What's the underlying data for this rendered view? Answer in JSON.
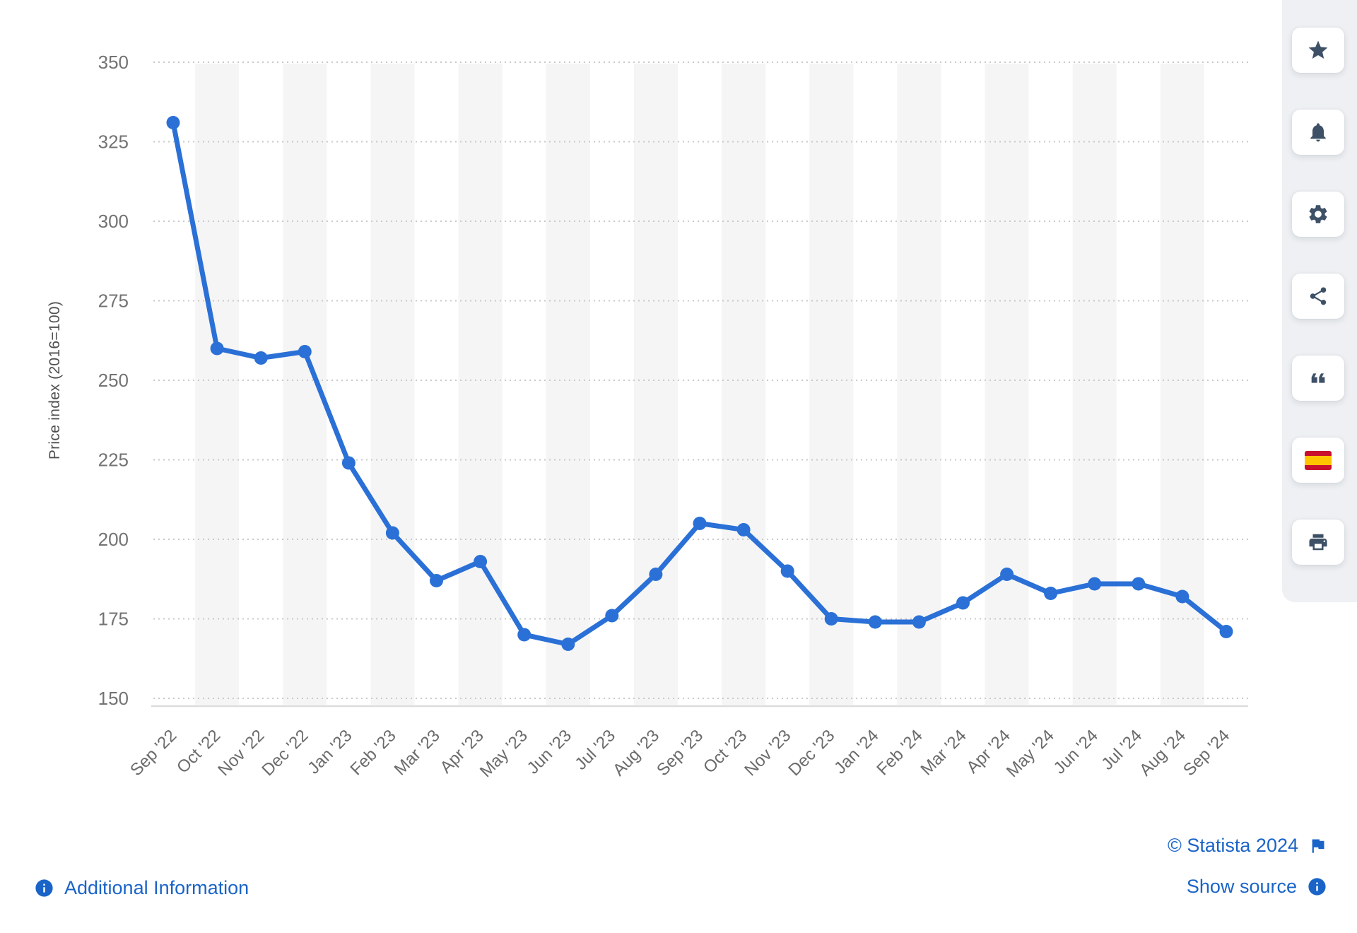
{
  "chart_data": {
    "type": "line",
    "title": "",
    "xlabel": "",
    "ylabel": "Price index (2016=100)",
    "ylim": [
      150,
      350
    ],
    "yticks": [
      350,
      325,
      300,
      275,
      250,
      225,
      200,
      175,
      150
    ],
    "grid": true,
    "legend": false,
    "categories": [
      "Sep '22",
      "Oct '22",
      "Nov '22",
      "Dec '22",
      "Jan '23",
      "Feb '23",
      "Mar '23",
      "Apr '23",
      "May '23",
      "Jun '23",
      "Jul '23",
      "Aug '23",
      "Sep '23",
      "Oct '23",
      "Nov '23",
      "Dec '23",
      "Jan '24",
      "Feb '24",
      "Mar '24",
      "Apr '24",
      "May '24",
      "Jun '24",
      "Jul '24",
      "Aug '24",
      "Sep '24"
    ],
    "series": [
      {
        "name": "Price index (2016=100)",
        "values": [
          331,
          260,
          257,
          259,
          224,
          202,
          187,
          193,
          170,
          167,
          176,
          189,
          205,
          203,
          190,
          175,
          174,
          174,
          180,
          189,
          183,
          186,
          186,
          182,
          171
        ]
      }
    ]
  },
  "sidebar": {
    "buttons": [
      {
        "name": "favorite",
        "icon": "star-icon"
      },
      {
        "name": "notifications",
        "icon": "bell-icon"
      },
      {
        "name": "settings",
        "icon": "gear-icon"
      },
      {
        "name": "share",
        "icon": "share-icon"
      },
      {
        "name": "cite",
        "icon": "quote-icon"
      },
      {
        "name": "language-spanish",
        "icon": "spain-flag-icon"
      },
      {
        "name": "print",
        "icon": "printer-icon"
      }
    ]
  },
  "footer": {
    "additional_information": "Additional Information",
    "copyright": "© Statista 2024",
    "show_source": "Show source"
  },
  "colors": {
    "line_blue": "#2a70d6",
    "link_blue": "#1a64c8",
    "icon_slate": "#3d5066",
    "grid_gray": "#c9c9c9",
    "tick_text": "#737373",
    "x_tick_text": "#6b6b6b",
    "stripe_gray": "#f5f5f5",
    "axis_line": "#dcdcdc",
    "flag_red": "#c8102e",
    "flag_yellow": "#ffc400"
  }
}
